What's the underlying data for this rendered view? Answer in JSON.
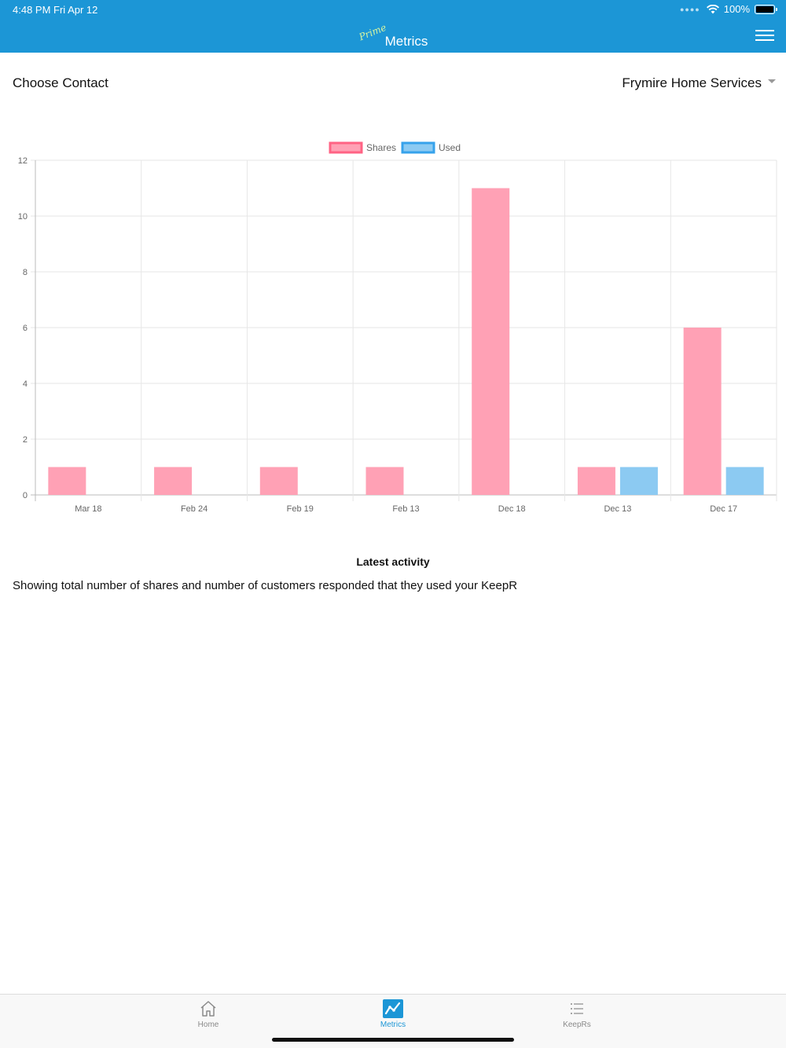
{
  "status_bar": {
    "time": "4:48 PM   Fri Apr 12",
    "battery": "100%"
  },
  "header": {
    "brand_tag": "Prime",
    "title": "Metrics",
    "menu_icon": "hamburger-icon"
  },
  "contact": {
    "label": "Choose Contact",
    "selected": "Frymire Home Services"
  },
  "colors": {
    "header": "#1c96d6",
    "shares_fill": "#ffa1b5",
    "shares_border": "#ff6384",
    "used_fill": "#8ccaf2",
    "used_border": "#36a2eb"
  },
  "chart_data": {
    "type": "bar",
    "categories": [
      "Mar 18",
      "Feb 24",
      "Feb 19",
      "Feb 13",
      "Dec 18",
      "Dec 13",
      "Dec 17"
    ],
    "series": [
      {
        "name": "Shares",
        "values": [
          1,
          1,
          1,
          1,
          11,
          1,
          6
        ]
      },
      {
        "name": "Used",
        "values": [
          0,
          0,
          0,
          0,
          0,
          1,
          1
        ]
      }
    ],
    "ylim": [
      0,
      12
    ],
    "yticks": [
      0,
      2,
      4,
      6,
      8,
      10,
      12
    ],
    "legend": "top",
    "grid": true
  },
  "activity": {
    "title": "Latest activity",
    "description": "Showing total number of shares and number of customers responded that they used your KeepR"
  },
  "tabs": [
    {
      "label": "Home",
      "icon": "home-icon",
      "active": false
    },
    {
      "label": "Metrics",
      "icon": "metrics-icon",
      "active": true
    },
    {
      "label": "KeepRs",
      "icon": "list-icon",
      "active": false
    }
  ]
}
